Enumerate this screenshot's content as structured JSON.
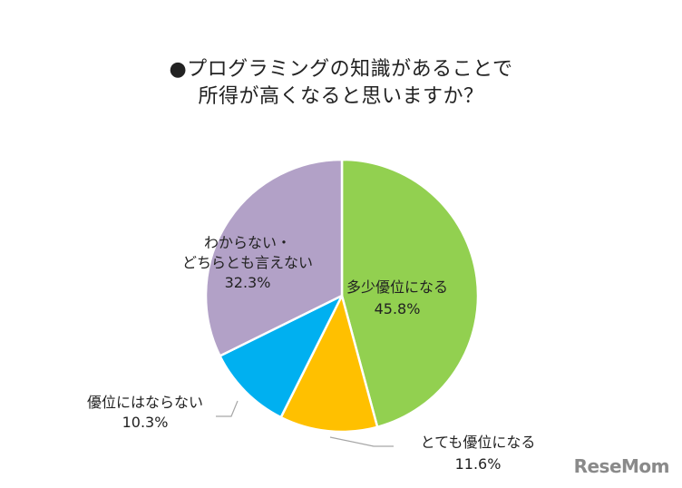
{
  "chart_data": {
    "type": "pie",
    "title_lines": [
      "●プログラミングの知識があることで",
      "所得が高くなると思いますか？"
    ],
    "start_angle_deg": 0,
    "direction": "clockwise",
    "slices": [
      {
        "label_lines": [
          "多少優位になる"
        ],
        "value": 45.8,
        "value_label": "45.8%",
        "color": "#92d050",
        "label_pos": "inside"
      },
      {
        "label_lines": [
          "とても優位になる"
        ],
        "value": 11.6,
        "value_label": "11.6%",
        "color": "#ffc000",
        "label_pos": "outside"
      },
      {
        "label_lines": [
          "優位にはならない"
        ],
        "value": 10.3,
        "value_label": "10.3%",
        "color": "#00b0f0",
        "label_pos": "outside"
      },
      {
        "label_lines": [
          "わからない・",
          "どちらとも言えない"
        ],
        "value": 32.3,
        "value_label": "32.3%",
        "color": "#b2a1c7",
        "label_pos": "inside"
      }
    ]
  },
  "logo": {
    "text": "ReseMom"
  }
}
